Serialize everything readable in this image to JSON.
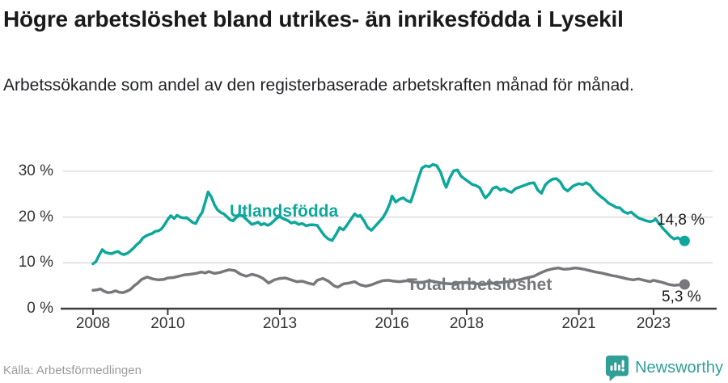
{
  "header": {
    "title": "Högre arbetslöshet bland utrikes- än inrikesfödda i Lysekil",
    "subtitle": "Arbetssökande som andel av den registerbaserade arbetskraften månad för månad."
  },
  "footer": {
    "source": "Källa: Arbetsförmedlingen",
    "brand": "Newsworthy"
  },
  "colors": {
    "teal": "#0da79b",
    "gray": "#77787b",
    "grid": "#d8d8d8",
    "axis": "#3c3c3c",
    "tick_text": "#333333",
    "end_label_text": "#1a1a1a",
    "source_text": "#9b9b9b",
    "logo": "#2f9f97"
  },
  "chart_data": {
    "type": "line",
    "title": "Högre arbetslöshet bland utrikes- än inrikesfödda i Lysekil",
    "subtitle": "Arbetssökande som andel av den registerbaserade arbetskraften månad för månad.",
    "xlabel": "",
    "ylabel": "",
    "ylim": [
      0,
      33
    ],
    "xlim": [
      2007.2,
      2024.5
    ],
    "grid": true,
    "legend_position": "inline-labels",
    "y_ticks": [
      {
        "value": 30,
        "label": "30 %"
      },
      {
        "value": 20,
        "label": "20 %"
      },
      {
        "value": 10,
        "label": "10 %"
      },
      {
        "value": 0,
        "label": "0 %"
      }
    ],
    "x_ticks": [
      {
        "value": 2008,
        "label": "2008"
      },
      {
        "value": 2010,
        "label": "2010"
      },
      {
        "value": 2013,
        "label": "2013"
      },
      {
        "value": 2016,
        "label": "2016"
      },
      {
        "value": 2018,
        "label": "2018"
      },
      {
        "value": 2021,
        "label": "2021"
      },
      {
        "value": 2023,
        "label": "2023"
      }
    ],
    "series": [
      {
        "name": "Utlandsfödda",
        "color": "#0da79b",
        "end_label": "14,8 %",
        "end_value": 14.8,
        "points": [
          [
            2008.0,
            9.8
          ],
          [
            2008.08,
            10.3
          ],
          [
            2008.17,
            11.8
          ],
          [
            2008.25,
            12.9
          ],
          [
            2008.33,
            12.3
          ],
          [
            2008.42,
            12.1
          ],
          [
            2008.5,
            12.0
          ],
          [
            2008.58,
            12.3
          ],
          [
            2008.67,
            12.5
          ],
          [
            2008.75,
            12.0
          ],
          [
            2008.83,
            11.8
          ],
          [
            2008.92,
            12.1
          ],
          [
            2009.0,
            12.6
          ],
          [
            2009.08,
            13.2
          ],
          [
            2009.17,
            14.0
          ],
          [
            2009.25,
            14.5
          ],
          [
            2009.33,
            15.4
          ],
          [
            2009.42,
            15.9
          ],
          [
            2009.5,
            16.2
          ],
          [
            2009.58,
            16.4
          ],
          [
            2009.67,
            16.9
          ],
          [
            2009.75,
            17.0
          ],
          [
            2009.83,
            17.4
          ],
          [
            2009.92,
            18.4
          ],
          [
            2010.0,
            19.5
          ],
          [
            2010.08,
            20.3
          ],
          [
            2010.17,
            19.7
          ],
          [
            2010.25,
            20.4
          ],
          [
            2010.33,
            20.0
          ],
          [
            2010.42,
            19.8
          ],
          [
            2010.5,
            19.9
          ],
          [
            2010.58,
            19.4
          ],
          [
            2010.67,
            18.8
          ],
          [
            2010.75,
            18.6
          ],
          [
            2010.83,
            19.9
          ],
          [
            2010.92,
            21.0
          ],
          [
            2011.0,
            23.2
          ],
          [
            2011.08,
            25.5
          ],
          [
            2011.17,
            24.3
          ],
          [
            2011.25,
            22.7
          ],
          [
            2011.33,
            21.6
          ],
          [
            2011.42,
            21.0
          ],
          [
            2011.5,
            20.7
          ],
          [
            2011.58,
            20.1
          ],
          [
            2011.67,
            19.4
          ],
          [
            2011.75,
            19.2
          ],
          [
            2011.83,
            19.9
          ],
          [
            2011.92,
            20.4
          ],
          [
            2012.0,
            20.3
          ],
          [
            2012.08,
            19.7
          ],
          [
            2012.17,
            19.0
          ],
          [
            2012.25,
            18.4
          ],
          [
            2012.33,
            18.6
          ],
          [
            2012.42,
            18.9
          ],
          [
            2012.5,
            18.3
          ],
          [
            2012.58,
            18.6
          ],
          [
            2012.67,
            18.2
          ],
          [
            2012.75,
            18.5
          ],
          [
            2012.83,
            19.1
          ],
          [
            2012.92,
            19.8
          ],
          [
            2013.0,
            20.1
          ],
          [
            2013.1,
            19.6
          ],
          [
            2013.2,
            19.3
          ],
          [
            2013.3,
            18.7
          ],
          [
            2013.4,
            18.9
          ],
          [
            2013.5,
            18.4
          ],
          [
            2013.6,
            18.6
          ],
          [
            2013.7,
            18.1
          ],
          [
            2013.8,
            18.3
          ],
          [
            2013.9,
            18.3
          ],
          [
            2014.0,
            18.2
          ],
          [
            2014.1,
            17.0
          ],
          [
            2014.2,
            15.9
          ],
          [
            2014.3,
            15.2
          ],
          [
            2014.4,
            14.9
          ],
          [
            2014.5,
            16.2
          ],
          [
            2014.6,
            17.7
          ],
          [
            2014.7,
            17.2
          ],
          [
            2014.8,
            18.3
          ],
          [
            2014.9,
            19.5
          ],
          [
            2015.0,
            20.7
          ],
          [
            2015.1,
            20.1
          ],
          [
            2015.15,
            20.4
          ],
          [
            2015.25,
            19.2
          ],
          [
            2015.35,
            17.7
          ],
          [
            2015.45,
            17.1
          ],
          [
            2015.55,
            18.0
          ],
          [
            2015.65,
            18.9
          ],
          [
            2015.75,
            19.8
          ],
          [
            2015.85,
            21.2
          ],
          [
            2015.95,
            23.1
          ],
          [
            2016.0,
            24.6
          ],
          [
            2016.1,
            23.3
          ],
          [
            2016.2,
            23.9
          ],
          [
            2016.3,
            24.2
          ],
          [
            2016.4,
            23.6
          ],
          [
            2016.5,
            23.3
          ],
          [
            2016.6,
            25.7
          ],
          [
            2016.7,
            28.3
          ],
          [
            2016.8,
            30.7
          ],
          [
            2016.9,
            31.2
          ],
          [
            2017.0,
            31.0
          ],
          [
            2017.1,
            31.5
          ],
          [
            2017.2,
            31.2
          ],
          [
            2017.3,
            29.8
          ],
          [
            2017.4,
            27.4
          ],
          [
            2017.45,
            26.5
          ],
          [
            2017.55,
            28.6
          ],
          [
            2017.65,
            30.1
          ],
          [
            2017.75,
            30.3
          ],
          [
            2017.85,
            28.9
          ],
          [
            2017.95,
            28.3
          ],
          [
            2018.05,
            27.7
          ],
          [
            2018.15,
            27.1
          ],
          [
            2018.25,
            26.9
          ],
          [
            2018.35,
            26.4
          ],
          [
            2018.45,
            24.8
          ],
          [
            2018.5,
            24.2
          ],
          [
            2018.6,
            25.0
          ],
          [
            2018.7,
            26.3
          ],
          [
            2018.8,
            26.6
          ],
          [
            2018.9,
            25.9
          ],
          [
            2019.0,
            26.2
          ],
          [
            2019.1,
            25.7
          ],
          [
            2019.2,
            25.4
          ],
          [
            2019.3,
            26.2
          ],
          [
            2019.4,
            26.5
          ],
          [
            2019.5,
            26.8
          ],
          [
            2019.6,
            27.1
          ],
          [
            2019.7,
            27.4
          ],
          [
            2019.8,
            27.5
          ],
          [
            2019.9,
            25.9
          ],
          [
            2020.0,
            25.2
          ],
          [
            2020.1,
            27.0
          ],
          [
            2020.2,
            27.8
          ],
          [
            2020.3,
            28.3
          ],
          [
            2020.4,
            28.4
          ],
          [
            2020.5,
            27.7
          ],
          [
            2020.6,
            26.3
          ],
          [
            2020.7,
            25.7
          ],
          [
            2020.85,
            26.8
          ],
          [
            2021.0,
            27.3
          ],
          [
            2021.1,
            27.1
          ],
          [
            2021.2,
            27.5
          ],
          [
            2021.3,
            27.0
          ],
          [
            2021.4,
            25.9
          ],
          [
            2021.5,
            25.1
          ],
          [
            2021.6,
            24.4
          ],
          [
            2021.7,
            23.8
          ],
          [
            2021.8,
            23.0
          ],
          [
            2021.9,
            22.6
          ],
          [
            2022.0,
            22.1
          ],
          [
            2022.1,
            22.0
          ],
          [
            2022.2,
            21.2
          ],
          [
            2022.3,
            20.8
          ],
          [
            2022.4,
            21.1
          ],
          [
            2022.5,
            20.4
          ],
          [
            2022.6,
            19.8
          ],
          [
            2022.7,
            19.5
          ],
          [
            2022.8,
            19.2
          ],
          [
            2022.9,
            19.0
          ],
          [
            2023.0,
            19.2
          ],
          [
            2023.05,
            19.6
          ],
          [
            2023.15,
            18.6
          ],
          [
            2023.25,
            17.5
          ],
          [
            2023.35,
            16.7
          ],
          [
            2023.45,
            15.8
          ],
          [
            2023.55,
            15.2
          ],
          [
            2023.65,
            15.5
          ],
          [
            2023.75,
            14.9
          ],
          [
            2023.83,
            14.8
          ]
        ]
      },
      {
        "name": "Total arbetslöshet",
        "color": "#77787b",
        "end_label": "5,3 %",
        "end_value": 5.3,
        "points": [
          [
            2008.0,
            4.0
          ],
          [
            2008.1,
            4.1
          ],
          [
            2008.2,
            4.3
          ],
          [
            2008.3,
            3.8
          ],
          [
            2008.4,
            3.5
          ],
          [
            2008.5,
            3.6
          ],
          [
            2008.6,
            3.9
          ],
          [
            2008.7,
            3.6
          ],
          [
            2008.8,
            3.5
          ],
          [
            2008.9,
            3.8
          ],
          [
            2009.0,
            4.2
          ],
          [
            2009.1,
            5.0
          ],
          [
            2009.2,
            5.6
          ],
          [
            2009.3,
            6.4
          ],
          [
            2009.45,
            6.9
          ],
          [
            2009.6,
            6.5
          ],
          [
            2009.75,
            6.3
          ],
          [
            2009.9,
            6.4
          ],
          [
            2010.0,
            6.7
          ],
          [
            2010.15,
            6.8
          ],
          [
            2010.3,
            7.1
          ],
          [
            2010.45,
            7.4
          ],
          [
            2010.6,
            7.5
          ],
          [
            2010.75,
            7.7
          ],
          [
            2010.9,
            8.0
          ],
          [
            2011.0,
            7.8
          ],
          [
            2011.1,
            8.1
          ],
          [
            2011.25,
            7.7
          ],
          [
            2011.4,
            7.9
          ],
          [
            2011.55,
            8.3
          ],
          [
            2011.65,
            8.5
          ],
          [
            2011.8,
            8.3
          ],
          [
            2011.95,
            7.5
          ],
          [
            2012.1,
            7.1
          ],
          [
            2012.25,
            7.5
          ],
          [
            2012.4,
            7.2
          ],
          [
            2012.55,
            6.6
          ],
          [
            2012.7,
            5.6
          ],
          [
            2012.85,
            6.3
          ],
          [
            2013.0,
            6.6
          ],
          [
            2013.15,
            6.7
          ],
          [
            2013.3,
            6.3
          ],
          [
            2013.45,
            5.9
          ],
          [
            2013.6,
            6.0
          ],
          [
            2013.75,
            5.6
          ],
          [
            2013.9,
            5.3
          ],
          [
            2014.0,
            6.2
          ],
          [
            2014.15,
            6.6
          ],
          [
            2014.3,
            6.0
          ],
          [
            2014.45,
            5.0
          ],
          [
            2014.55,
            4.7
          ],
          [
            2014.7,
            5.4
          ],
          [
            2014.85,
            5.6
          ],
          [
            2015.0,
            5.9
          ],
          [
            2015.15,
            5.2
          ],
          [
            2015.3,
            4.9
          ],
          [
            2015.45,
            5.2
          ],
          [
            2015.6,
            5.7
          ],
          [
            2015.75,
            6.1
          ],
          [
            2015.9,
            6.2
          ],
          [
            2016.05,
            6.0
          ],
          [
            2016.2,
            5.9
          ],
          [
            2016.4,
            6.1
          ],
          [
            2016.6,
            5.8
          ],
          [
            2016.8,
            5.7
          ],
          [
            2017.0,
            6.1
          ],
          [
            2017.2,
            5.8
          ],
          [
            2017.4,
            5.5
          ],
          [
            2017.6,
            5.4
          ],
          [
            2017.8,
            5.7
          ],
          [
            2018.0,
            5.7
          ],
          [
            2018.2,
            5.5
          ],
          [
            2018.4,
            5.3
          ],
          [
            2018.6,
            5.5
          ],
          [
            2018.8,
            5.6
          ],
          [
            2019.0,
            5.8
          ],
          [
            2019.2,
            6.0
          ],
          [
            2019.4,
            6.3
          ],
          [
            2019.6,
            6.7
          ],
          [
            2019.8,
            7.1
          ],
          [
            2019.9,
            7.5
          ],
          [
            2020.0,
            7.9
          ],
          [
            2020.15,
            8.4
          ],
          [
            2020.3,
            8.7
          ],
          [
            2020.45,
            8.9
          ],
          [
            2020.6,
            8.6
          ],
          [
            2020.75,
            8.7
          ],
          [
            2020.9,
            8.9
          ],
          [
            2021.0,
            8.8
          ],
          [
            2021.15,
            8.6
          ],
          [
            2021.3,
            8.3
          ],
          [
            2021.45,
            8.0
          ],
          [
            2021.6,
            7.8
          ],
          [
            2021.75,
            7.5
          ],
          [
            2021.9,
            7.2
          ],
          [
            2022.0,
            7.1
          ],
          [
            2022.15,
            6.8
          ],
          [
            2022.3,
            6.5
          ],
          [
            2022.45,
            6.3
          ],
          [
            2022.6,
            6.5
          ],
          [
            2022.75,
            6.2
          ],
          [
            2022.9,
            5.9
          ],
          [
            2023.0,
            6.2
          ],
          [
            2023.1,
            6.0
          ],
          [
            2023.25,
            5.7
          ],
          [
            2023.4,
            5.3
          ],
          [
            2023.55,
            5.1
          ],
          [
            2023.7,
            5.2
          ],
          [
            2023.83,
            5.3
          ]
        ]
      }
    ]
  }
}
